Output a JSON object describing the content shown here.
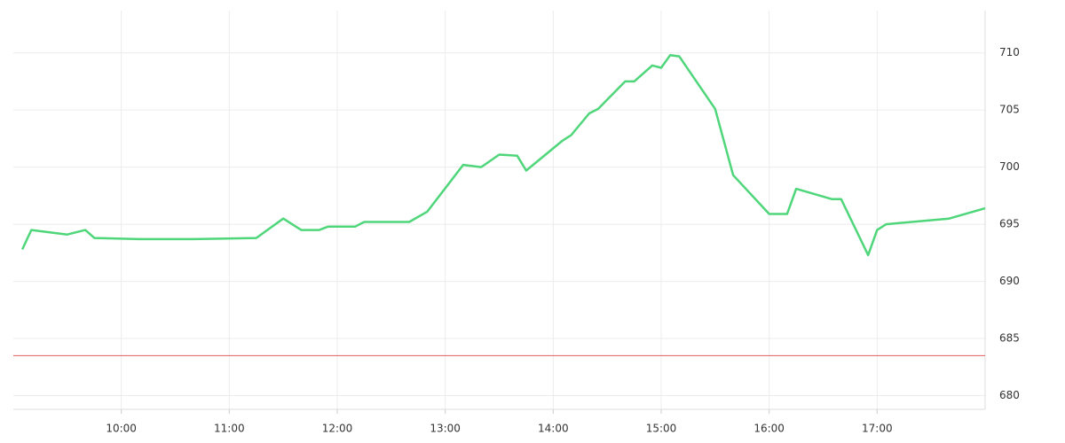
{
  "chart_data": {
    "type": "line",
    "x": [
      "09:05",
      "09:10",
      "09:30",
      "09:40",
      "09:45",
      "10:10",
      "10:40",
      "11:15",
      "11:30",
      "11:40",
      "11:50",
      "11:55",
      "12:10",
      "12:15",
      "12:40",
      "12:50",
      "13:10",
      "13:20",
      "13:30",
      "13:40",
      "13:45",
      "14:05",
      "14:10",
      "14:20",
      "14:25",
      "14:40",
      "14:45",
      "14:55",
      "15:00",
      "15:05",
      "15:10",
      "15:30",
      "15:40",
      "16:00",
      "16:10",
      "16:15",
      "16:35",
      "16:40",
      "16:55",
      "17:00",
      "17:05",
      "17:40",
      "18:00"
    ],
    "values": [
      692.8,
      694.5,
      694.1,
      694.5,
      693.8,
      693.7,
      693.7,
      693.8,
      695.5,
      694.5,
      694.5,
      694.8,
      694.8,
      695.2,
      695.2,
      696.1,
      700.2,
      700.0,
      701.1,
      701.0,
      699.7,
      702.3,
      702.8,
      704.7,
      705.1,
      707.5,
      707.5,
      708.9,
      708.7,
      709.8,
      709.7,
      705.1,
      699.3,
      695.9,
      695.9,
      698.1,
      697.2,
      697.2,
      692.3,
      694.5,
      695.0,
      695.5,
      696.4
    ],
    "color": "#4fd67a",
    "reference_line": {
      "value": 683.5,
      "color": "#e06060"
    },
    "xlim": [
      "09:00",
      "18:00"
    ],
    "xticks": [
      "10:00",
      "11:00",
      "12:00",
      "13:00",
      "14:00",
      "15:00",
      "16:00",
      "17:00"
    ],
    "ylim": [
      678.8,
      713.7
    ],
    "yticks": [
      680,
      685,
      690,
      695,
      700,
      705,
      710
    ],
    "grid": true
  }
}
